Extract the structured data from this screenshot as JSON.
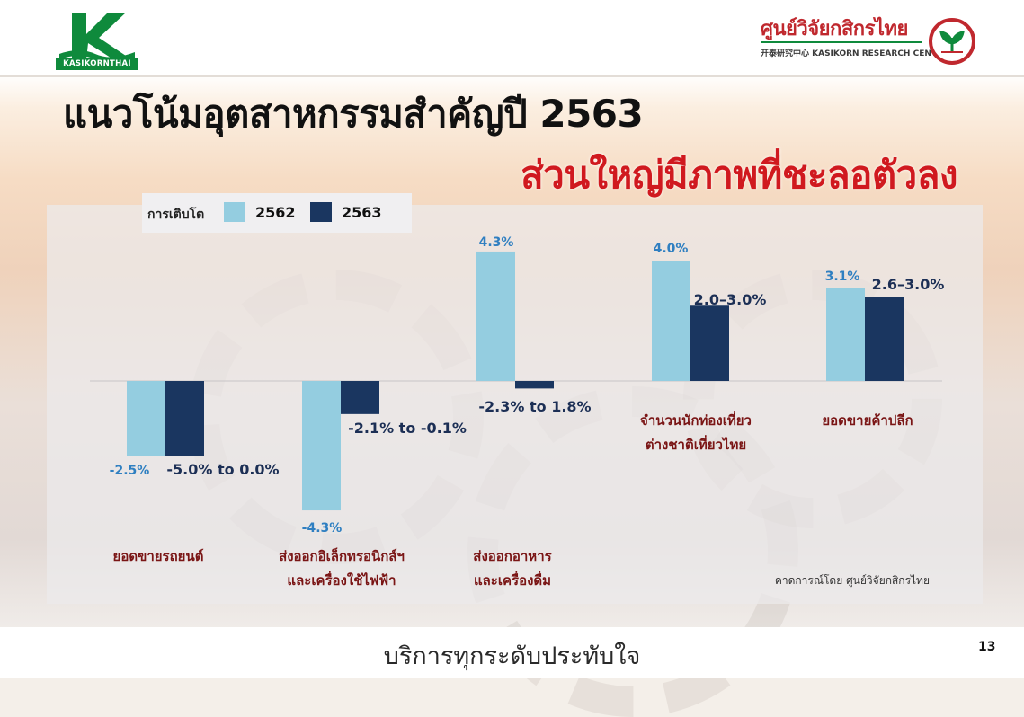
{
  "header": {
    "left_logo_text": "KASIKORNTHAI",
    "right_logo_thai": "ศูนย์วิจัยกสิกรไทย",
    "right_logo_english": "开泰研究中心 KASIKORN RESEARCH CENTER"
  },
  "title": {
    "line1": "แนวโน้มอุตสาหกรรมสำคัญปี 2563",
    "line2": "ส่วนใหญ่มีภาพที่ชะลอตัวลง"
  },
  "colors": {
    "series_2562": "#94cde0",
    "series_2563": "#1a3660",
    "label_2562": "#2f7fc1",
    "label_2563": "#1c2f55",
    "category_text": "#7a1515",
    "title_red": "#d0191f"
  },
  "chart_data": {
    "type": "bar",
    "legend_title": "การเติบโต",
    "legend_placement": "top-left",
    "grid": false,
    "unit": "%",
    "ylim": [
      -5,
      5
    ],
    "categories": [
      "ยอดขายรถยนต์",
      "ส่งออกอิเล็กทรอนิกส์ฯ และเครื่องใช้ไฟฟ้า",
      "ส่งออกอาหาร และเครื่องดื่ม",
      "จำนวนนักท่องเที่ยว ต่างชาติเที่ยวไทย",
      "ยอดขายค้าปลีก"
    ],
    "category_lines": [
      [
        "ยอดขายรถยนต์"
      ],
      [
        "ส่งออกอิเล็กทรอนิกส์ฯ",
        "และเครื่องใช้ไฟฟ้า"
      ],
      [
        "ส่งออกอาหาร",
        "และเครื่องดื่ม"
      ],
      [
        "จำนวนนักท่องเที่ยว",
        "ต่างชาติเที่ยวไทย"
      ],
      [
        "ยอดขายค้าปลีก"
      ]
    ],
    "series": [
      {
        "name": "2562",
        "values": [
          -2.5,
          -4.3,
          4.3,
          4.0,
          3.1
        ],
        "labels": [
          "-2.5%",
          "-4.3%",
          "4.3%",
          "4.0%",
          "3.1%"
        ]
      },
      {
        "name": "2563",
        "values": [
          -2.5,
          -1.1,
          -0.25,
          2.5,
          2.8
        ],
        "labels": [
          "-5.0% to 0.0%",
          "-2.1% to -0.1%",
          "-2.3% to 1.8%",
          "2.0–3.0%",
          "2.6–3.0%"
        ]
      }
    ],
    "source_note": "คาดการณ์โดย ศูนย์วิจัยกสิกรไทย"
  },
  "footer": {
    "slogan": "บริการทุกระดับประทับใจ",
    "page_number": "13"
  }
}
